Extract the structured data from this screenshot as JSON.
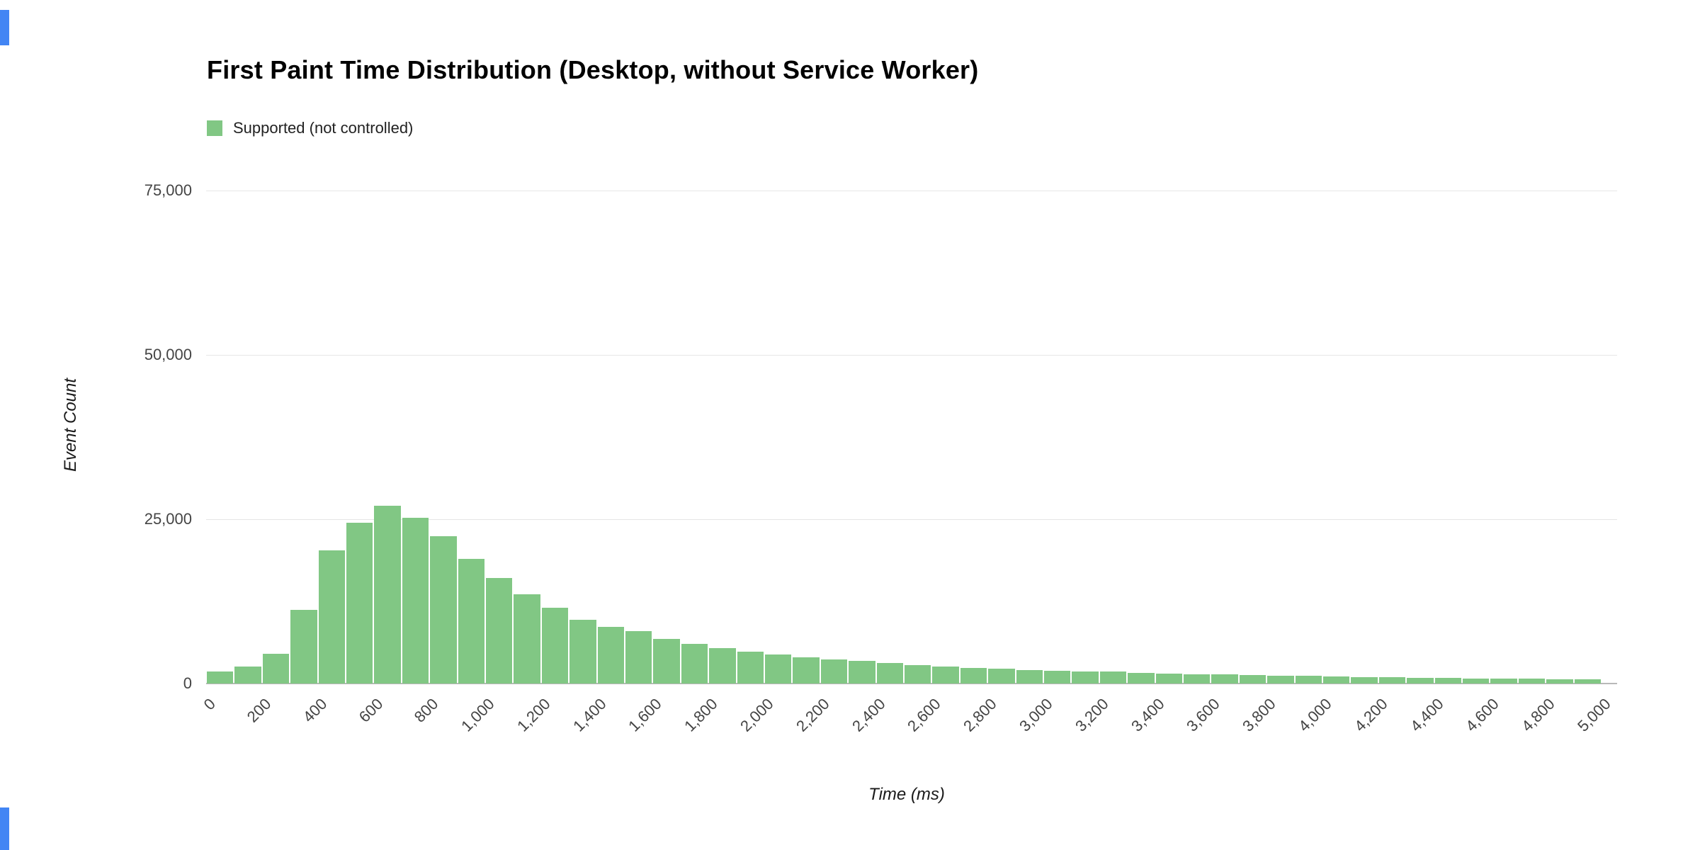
{
  "page": {
    "background": "#ffffff",
    "accent_blue": "#4285f4",
    "gridline_color": "#e6e6e6",
    "baseline_color": "#b9b9b9",
    "label_color": "#444444"
  },
  "chart_data": {
    "type": "bar",
    "subtype": "histogram",
    "title": "First Paint Time Distribution (Desktop, without Service Worker)",
    "xlabel": "Time (ms)",
    "ylabel": "Event Count",
    "grid": true,
    "legend_position": "top-left",
    "x_range_ms": [
      0,
      5000
    ],
    "bin_size_ms": 100,
    "ylim": [
      0,
      80000
    ],
    "y_ticks": [
      "0",
      "25,000",
      "50,000",
      "75,000"
    ],
    "y_tick_values": [
      0,
      25000,
      50000,
      75000
    ],
    "x_ticks": [
      "0",
      "200",
      "400",
      "600",
      "800",
      "1,000",
      "1,200",
      "1,400",
      "1,600",
      "1,800",
      "2,000",
      "2,200",
      "2,400",
      "2,600",
      "2,800",
      "3,000",
      "3,200",
      "3,400",
      "3,600",
      "3,800",
      "4,000",
      "4,200",
      "4,400",
      "4,600",
      "4,800",
      "5,000"
    ],
    "series": [
      {
        "name": "Supported (not controlled)",
        "color": "#81c784",
        "bin_starts_ms": [
          0,
          100,
          200,
          300,
          400,
          500,
          600,
          700,
          800,
          900,
          1000,
          1100,
          1200,
          1300,
          1400,
          1500,
          1600,
          1700,
          1800,
          1900,
          2000,
          2100,
          2200,
          2300,
          2400,
          2500,
          2600,
          2700,
          2800,
          2900,
          3000,
          3100,
          3200,
          3300,
          3400,
          3500,
          3600,
          3700,
          3800,
          3900,
          4000,
          4100,
          4200,
          4300,
          4400,
          4500,
          4600,
          4700,
          4800,
          4900
        ],
        "values": [
          1800,
          2600,
          4500,
          11200,
          20300,
          24500,
          27000,
          25200,
          22400,
          19000,
          16100,
          13600,
          11500,
          9700,
          8600,
          8000,
          6800,
          6000,
          5400,
          4900,
          4400,
          4000,
          3700,
          3400,
          3100,
          2800,
          2600,
          2400,
          2300,
          2100,
          1950,
          1850,
          1800,
          1650,
          1550,
          1450,
          1400,
          1300,
          1200,
          1150,
          1050,
          1000,
          950,
          900,
          850,
          800,
          750,
          800,
          650,
          600
        ]
      }
    ]
  }
}
